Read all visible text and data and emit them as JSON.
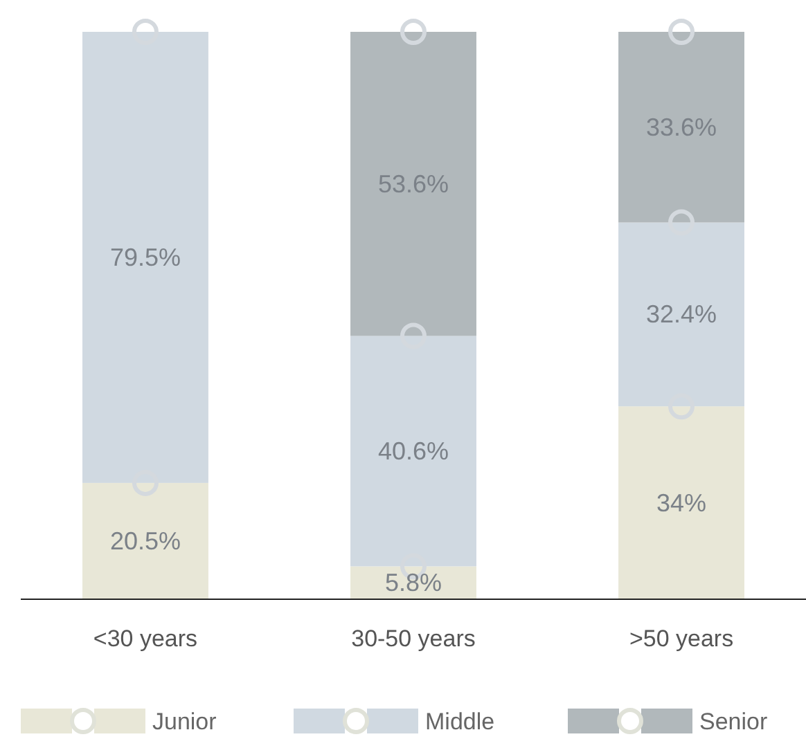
{
  "chart_data": {
    "type": "bar",
    "stacked": true,
    "categories": [
      "<30 years",
      "30-50 years",
      ">50 years"
    ],
    "series": [
      {
        "name": "Junior",
        "color": "#e8e7d7",
        "values": [
          20.5,
          5.8,
          34
        ],
        "value_labels": [
          "20.5%",
          "5.8%",
          "34%"
        ]
      },
      {
        "name": "Middle",
        "color": "#d0d9e1",
        "values": [
          79.5,
          40.6,
          32.4
        ],
        "value_labels": [
          "79.5%",
          "40.6%",
          "32.4%"
        ]
      },
      {
        "name": "Senior",
        "color": "#b1b8bb",
        "values": [
          null,
          53.6,
          33.6
        ],
        "value_labels": [
          null,
          "53.6%",
          "33.6%"
        ]
      }
    ],
    "legend": "bottom"
  }
}
